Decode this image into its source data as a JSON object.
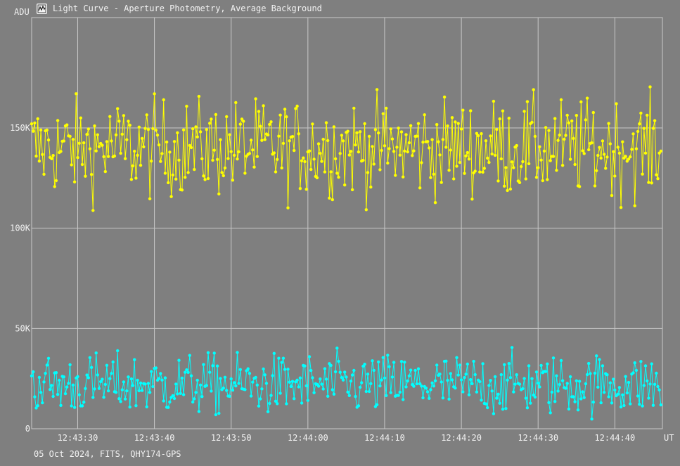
{
  "window": {
    "title": "Light Curve - Aperture Photometry, Average Background",
    "icon": "light-curve-app-icon"
  },
  "footer": {
    "caption": "05 Oct 2024, FITS, QHY174-GPS"
  },
  "chart_data": {
    "type": "line",
    "ylabel": "ADU",
    "xlabel": "UT",
    "x_start": "12:43:24.0",
    "x_end": "12:44:46.2",
    "x_ticks": [
      "12:43:30",
      "12:43:40",
      "12:43:50",
      "12:44:00",
      "12:44:10",
      "12:44:20",
      "12:44:30",
      "12:44:40"
    ],
    "y_ticks": [
      "0",
      "50K",
      "100K",
      "150K"
    ],
    "ylim": [
      0,
      205000
    ],
    "grid": true,
    "sample_interval_s": 0.2,
    "series": [
      {
        "color": "#ffff00",
        "mean": 140000,
        "spread": 12000,
        "min": 104000,
        "max": 180000
      },
      {
        "color": "#00ffff",
        "mean": 22000,
        "spread": 7500,
        "min": 1500,
        "max": 45000
      }
    ]
  }
}
